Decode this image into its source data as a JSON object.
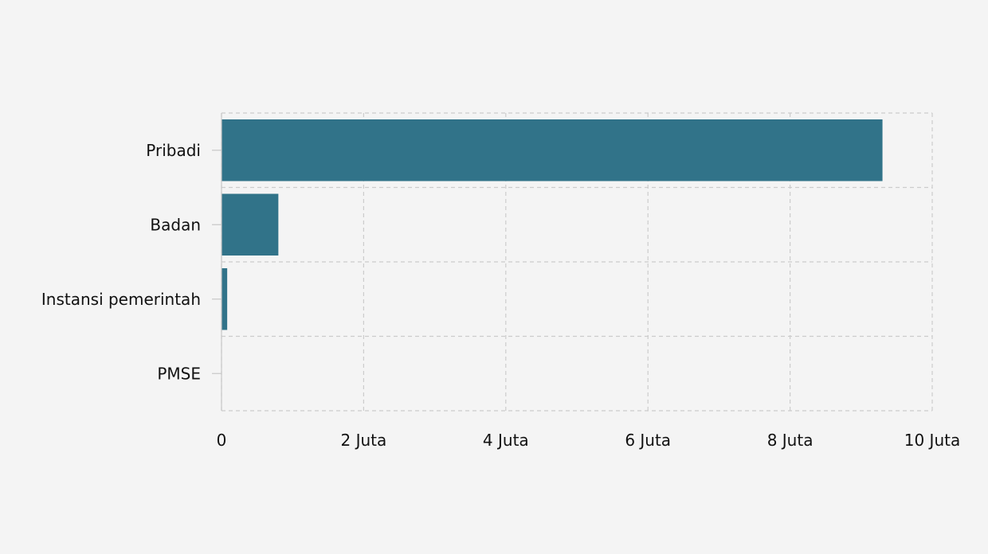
{
  "chart_data": {
    "type": "bar",
    "orientation": "horizontal",
    "categories": [
      "Pribadi",
      "Badan",
      "Instansi pemerintah",
      "PMSE"
    ],
    "values": [
      9300000,
      800000,
      80000,
      0
    ],
    "xlim": [
      0,
      10000000
    ],
    "xticks": [
      0,
      2000000,
      4000000,
      6000000,
      8000000,
      10000000
    ],
    "xtick_labels": [
      "0",
      "2 Juta",
      "4 Juta",
      "6 Juta",
      "8 Juta",
      "10 Juta"
    ],
    "grid": true,
    "legend": "none",
    "colors": {
      "bar": "#317389",
      "grid": "#cccccc",
      "axis": "#c8c8c8",
      "background": "#f4f4f4",
      "text": "#111111"
    }
  }
}
